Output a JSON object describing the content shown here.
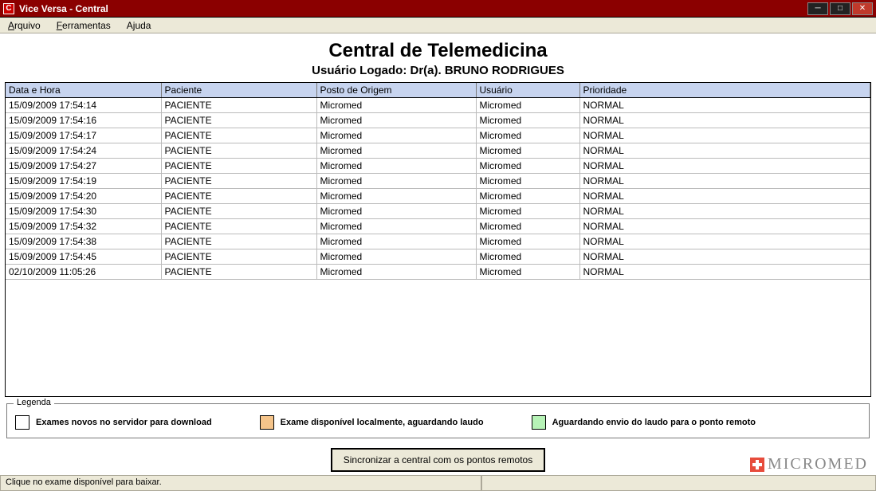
{
  "window": {
    "title": "Vice Versa - Central",
    "app_icon_letter": "C"
  },
  "menu": {
    "arquivo": "Arquivo",
    "ferramentas": "Ferramentas",
    "ajuda": "Ajuda"
  },
  "header": {
    "title": "Central de Telemedicina",
    "subtitle": "Usuário Logado: Dr(a). BRUNO RODRIGUES"
  },
  "table": {
    "columns": [
      "Data e Hora",
      "Paciente",
      "Posto de Origem",
      "Usuário",
      "Prioridade"
    ],
    "rows": [
      [
        "15/09/2009 17:54:14",
        "PACIENTE",
        "Micromed",
        "Micromed",
        "NORMAL"
      ],
      [
        "15/09/2009 17:54:16",
        "PACIENTE",
        "Micromed",
        "Micromed",
        "NORMAL"
      ],
      [
        "15/09/2009 17:54:17",
        "PACIENTE",
        "Micromed",
        "Micromed",
        "NORMAL"
      ],
      [
        "15/09/2009 17:54:24",
        "PACIENTE",
        "Micromed",
        "Micromed",
        "NORMAL"
      ],
      [
        "15/09/2009 17:54:27",
        "PACIENTE",
        "Micromed",
        "Micromed",
        "NORMAL"
      ],
      [
        "15/09/2009 17:54:19",
        "PACIENTE",
        "Micromed",
        "Micromed",
        "NORMAL"
      ],
      [
        "15/09/2009 17:54:20",
        "PACIENTE",
        "Micromed",
        "Micromed",
        "NORMAL"
      ],
      [
        "15/09/2009 17:54:30",
        "PACIENTE",
        "Micromed",
        "Micromed",
        "NORMAL"
      ],
      [
        "15/09/2009 17:54:32",
        "PACIENTE",
        "Micromed",
        "Micromed",
        "NORMAL"
      ],
      [
        "15/09/2009 17:54:38",
        "PACIENTE",
        "Micromed",
        "Micromed",
        "NORMAL"
      ],
      [
        "15/09/2009 17:54:45",
        "PACIENTE",
        "Micromed",
        "Micromed",
        "NORMAL"
      ],
      [
        "02/10/2009 11:05:26",
        "PACIENTE",
        "Micromed",
        "Micromed",
        "NORMAL"
      ]
    ]
  },
  "legend": {
    "title": "Legenda",
    "items": [
      {
        "color": "#ffffff",
        "label": "Exames novos no servidor para download"
      },
      {
        "color": "#f5c48a",
        "label": "Exame disponível localmente, aguardando laudo"
      },
      {
        "color": "#b6f2b6",
        "label": "Aguardando envio do laudo para o ponto remoto"
      }
    ]
  },
  "actions": {
    "sync_label": "Sincronizar a central com os pontos remotos"
  },
  "brand": {
    "name": "MICROMED"
  },
  "statusbar": {
    "message": "Clique no exame disponível para baixar."
  },
  "colors": {
    "titlebar_bg": "#8b0000",
    "header_bg": "#c7d4ef"
  }
}
